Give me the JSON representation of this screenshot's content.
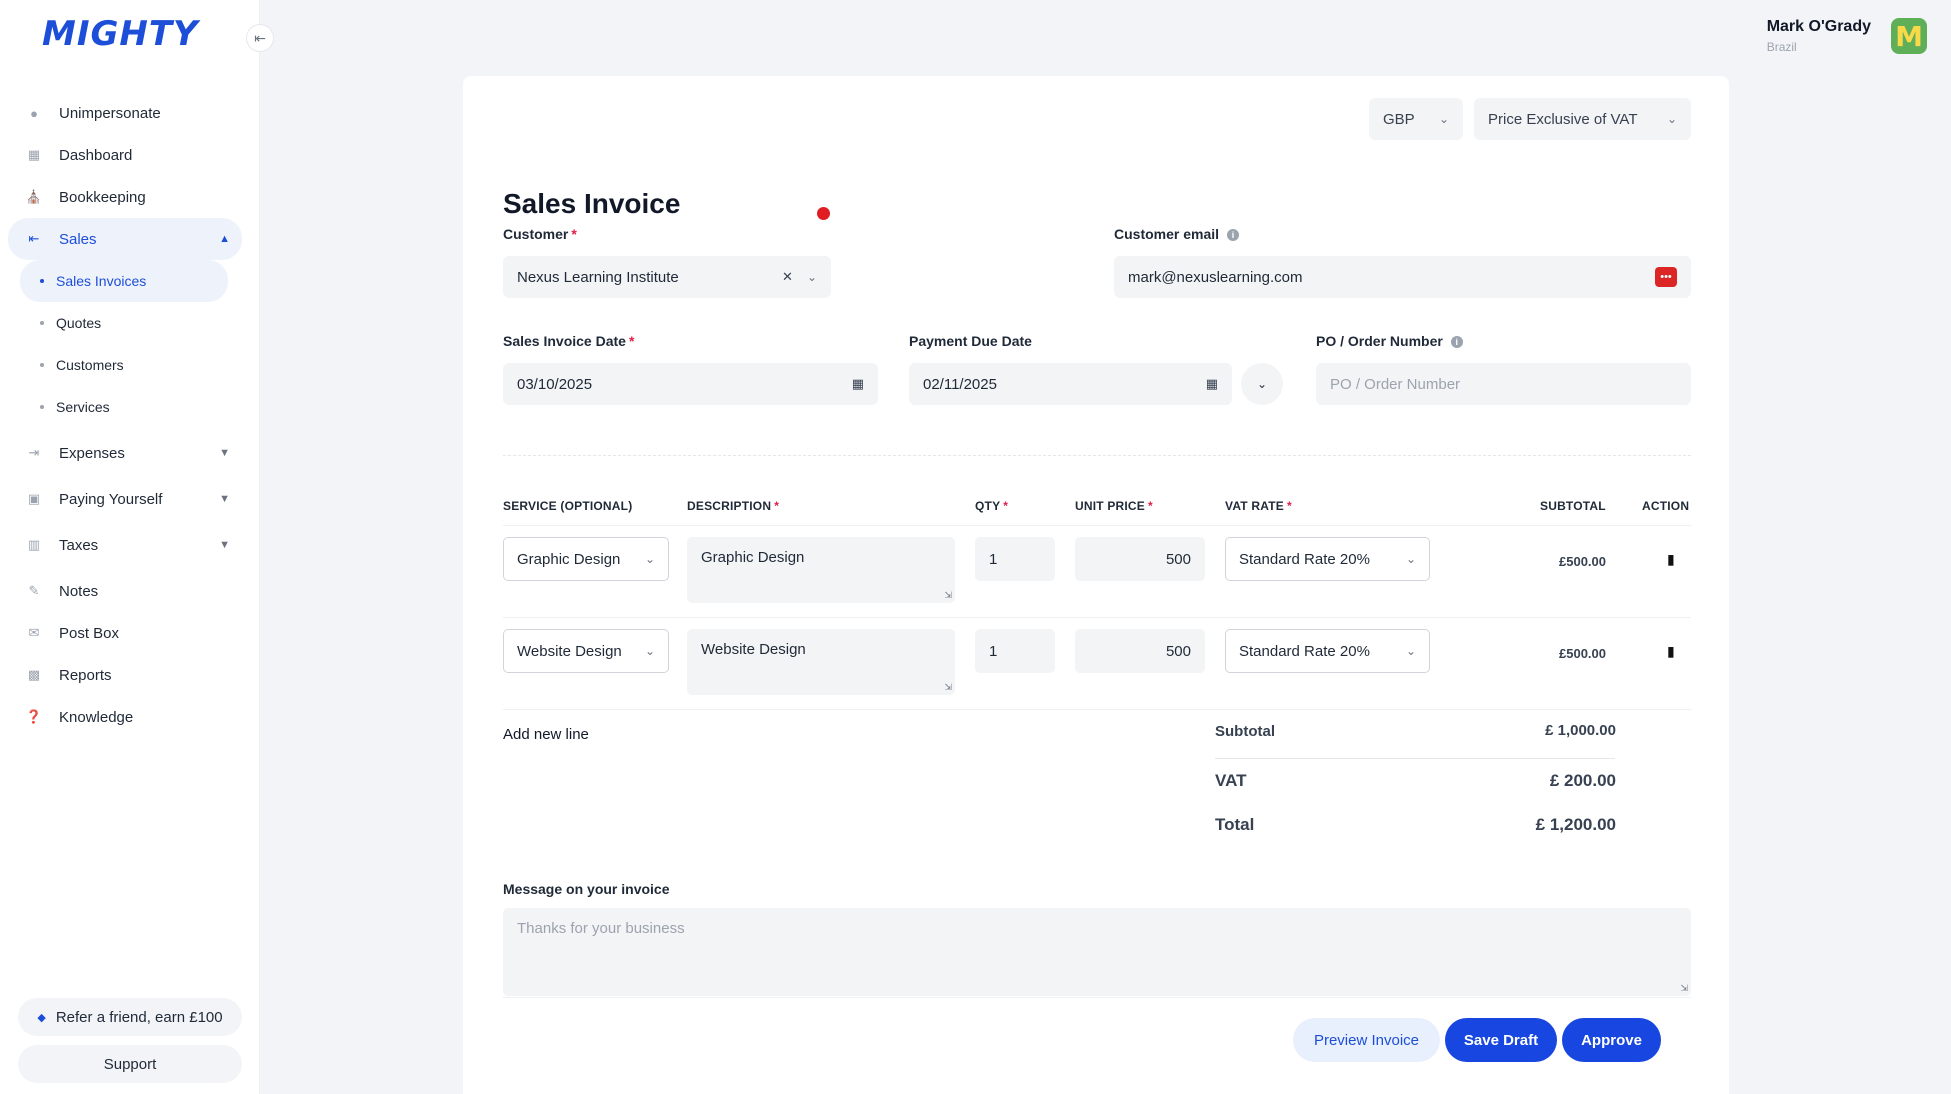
{
  "brand": {
    "logo": "MIGHTY"
  },
  "user": {
    "name": "Mark O'Grady",
    "location": "Brazil",
    "avatar_letter": "M"
  },
  "sidebar": {
    "collapse_icon": "⇤",
    "items": [
      {
        "label": "Unimpersonate",
        "icon": "user-icon"
      },
      {
        "label": "Dashboard",
        "icon": "grid-icon"
      },
      {
        "label": "Bookkeeping",
        "icon": "bank-icon"
      },
      {
        "label": "Sales",
        "icon": "sales-icon",
        "expanded": true
      },
      {
        "label": "Expenses",
        "icon": "expenses-icon"
      },
      {
        "label": "Paying Yourself",
        "icon": "wallet-icon"
      },
      {
        "label": "Taxes",
        "icon": "calendar-icon"
      },
      {
        "label": "Notes",
        "icon": "pencil-icon"
      },
      {
        "label": "Post Box",
        "icon": "mail-icon"
      },
      {
        "label": "Reports",
        "icon": "chart-icon"
      },
      {
        "label": "Knowledge",
        "icon": "help-icon"
      }
    ],
    "sales_sub": [
      {
        "label": "Sales Invoices",
        "active": true
      },
      {
        "label": "Quotes"
      },
      {
        "label": "Customers"
      },
      {
        "label": "Services"
      }
    ],
    "refer": "Refer a friend, earn £100",
    "support": "Support"
  },
  "invoice": {
    "currency": "GBP",
    "price_mode": "Price Exclusive of VAT",
    "title": "Sales Invoice",
    "customer_label": "Customer",
    "customer_value": "Nexus Learning Institute",
    "email_label": "Customer email",
    "email_value": "mark@nexuslearning.com",
    "date_label": "Sales Invoice Date",
    "date_value": "03/10/2025",
    "due_label": "Payment Due Date",
    "due_value": "02/11/2025",
    "po_label": "PO / Order Number",
    "po_placeholder": "PO / Order Number",
    "columns": {
      "service": "SERVICE (OPTIONAL)",
      "description": "DESCRIPTION",
      "qty": "QTY",
      "unit_price": "UNIT PRICE",
      "vat_rate": "VAT RATE",
      "subtotal": "SUBTOTAL",
      "action": "ACTION"
    },
    "lines": [
      {
        "service": "Graphic Design",
        "description": "Graphic Design",
        "qty": "1",
        "unit_price": "500",
        "vat": "Standard Rate 20%",
        "subtotal": "£500.00"
      },
      {
        "service": "Website Design",
        "description": "Website Design",
        "qty": "1",
        "unit_price": "500",
        "vat": "Standard Rate 20%",
        "subtotal": "£500.00"
      }
    ],
    "add_line": "Add new line",
    "totals": {
      "subtotal_label": "Subtotal",
      "subtotal_value": "£ 1,000.00",
      "vat_label": "VAT",
      "vat_value": "£ 200.00",
      "total_label": "Total",
      "total_value": "£ 1,200.00"
    },
    "message_label": "Message on your invoice",
    "message_placeholder": "Thanks for your business",
    "buttons": {
      "preview": "Preview Invoice",
      "save": "Save Draft",
      "approve": "Approve"
    }
  }
}
